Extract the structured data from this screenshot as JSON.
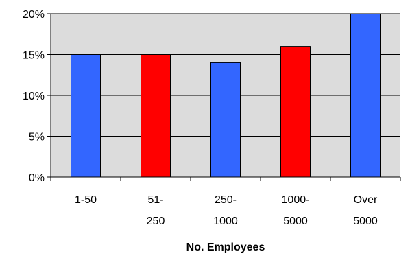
{
  "chart_data": {
    "type": "bar",
    "categories": [
      [
        "1-50"
      ],
      [
        "51-",
        "250"
      ],
      [
        "250-",
        "1000"
      ],
      [
        "1000-",
        "5000"
      ],
      [
        "Over",
        "5000"
      ]
    ],
    "values": [
      15,
      15,
      14,
      16,
      20
    ],
    "bar_colors": [
      "#3366ff",
      "#ff0000",
      "#3366ff",
      "#ff0000",
      "#3366ff"
    ],
    "xlabel": "No. Employees",
    "ylabel": "",
    "ylim": [
      0,
      20
    ],
    "yticks": [
      "0%",
      "5%",
      "10%",
      "15%",
      "20%"
    ],
    "grid": true,
    "plot_background": "#dcdcdc"
  }
}
